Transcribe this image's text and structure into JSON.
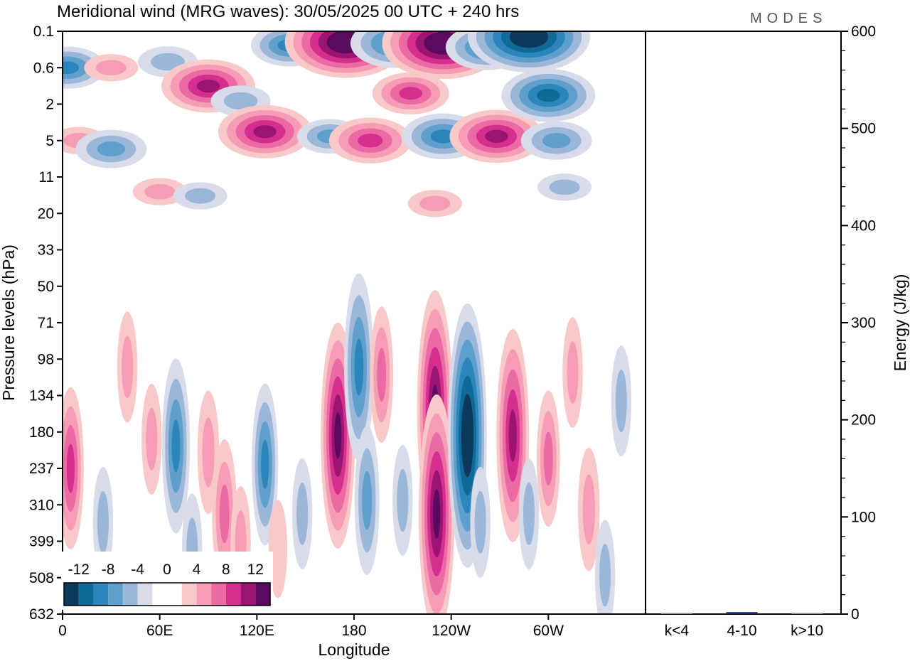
{
  "title": "Meridional wind (MRG waves):  30/05/2025  00 UTC  + 240 hrs",
  "logo": "MODES",
  "chart_data": [
    {
      "type": "heatmap",
      "title": "Meridional wind (MRG waves):  30/05/2025  00 UTC  + 240 hrs",
      "xlabel": "Longitude",
      "ylabel": "Pressure levels (hPa)",
      "x_ticks": [
        "0",
        "60E",
        "120E",
        "180",
        "120W",
        "60W"
      ],
      "y_ticks": [
        "0.1",
        "0.6",
        "2",
        "5",
        "11",
        "20",
        "33",
        "50",
        "71",
        "98",
        "134",
        "180",
        "237",
        "310",
        "399",
        "508",
        "632"
      ],
      "colorbar": {
        "labels": [
          "-12",
          "-8",
          "-4",
          "0",
          "4",
          "8",
          "12"
        ],
        "colors": [
          "#0d3a5c",
          "#106a98",
          "#2d86bb",
          "#5e9fcb",
          "#9ab6d8",
          "#d8dbe9",
          "#ffffff",
          "#ffffff",
          "#f9c9c9",
          "#f69cb5",
          "#ec6aa4",
          "#d42e8f",
          "#9c1472",
          "#5a0a5f"
        ]
      },
      "blobs_lower": [
        {
          "lon": 5,
          "p": 237,
          "v": 6
        },
        {
          "lon": 25,
          "p": 350,
          "v": -2
        },
        {
          "lon": 40,
          "p": 105,
          "v": 2
        },
        {
          "lon": 55,
          "p": 190,
          "v": 2
        },
        {
          "lon": 70,
          "p": 200,
          "v": -7
        },
        {
          "lon": 90,
          "p": 210,
          "v": 3
        },
        {
          "lon": 80,
          "p": 420,
          "v": -2
        },
        {
          "lon": 100,
          "p": 330,
          "v": 5
        },
        {
          "lon": 110,
          "p": 400,
          "v": 2
        },
        {
          "lon": 125,
          "p": 230,
          "v": -6
        },
        {
          "lon": 133,
          "p": 420,
          "v": 1
        },
        {
          "lon": 148,
          "p": 330,
          "v": -2
        },
        {
          "lon": 170,
          "p": 185,
          "v": 11
        },
        {
          "lon": 183,
          "p": 105,
          "v": -8
        },
        {
          "lon": 188,
          "p": 300,
          "v": -5
        },
        {
          "lon": 197,
          "p": 112,
          "v": 4
        },
        {
          "lon": 210,
          "p": 300,
          "v": -2
        },
        {
          "lon": 230,
          "p": 150,
          "v": 12
        },
        {
          "lon": 231,
          "p": 330,
          "v": 12
        },
        {
          "lon": 250,
          "p": 185,
          "v": -14
        },
        {
          "lon": 258,
          "p": 350,
          "v": -2
        },
        {
          "lon": 278,
          "p": 185,
          "v": 10
        },
        {
          "lon": 288,
          "p": 330,
          "v": -2
        },
        {
          "lon": 300,
          "p": 220,
          "v": 4
        },
        {
          "lon": 325,
          "p": 320,
          "v": 3
        },
        {
          "lon": 315,
          "p": 110,
          "v": 2
        },
        {
          "lon": 345,
          "p": 140,
          "v": -2
        },
        {
          "lon": 335,
          "p": 500,
          "v": -2
        }
      ],
      "blobs_upper": [
        {
          "lon": 3,
          "p": 0.6,
          "v": -6
        },
        {
          "lon": 30,
          "p": 0.6,
          "v": 2
        },
        {
          "lon": 10,
          "p": 5,
          "v": 2
        },
        {
          "lon": 30,
          "p": 6,
          "v": -5
        },
        {
          "lon": 65,
          "p": 0.45,
          "v": -3
        },
        {
          "lon": 90,
          "p": 1.1,
          "v": 9
        },
        {
          "lon": 60,
          "p": 14,
          "v": 2
        },
        {
          "lon": 85,
          "p": 15,
          "v": -2
        },
        {
          "lon": 110,
          "p": 1.8,
          "v": -3
        },
        {
          "lon": 125,
          "p": 4,
          "v": 9
        },
        {
          "lon": 140,
          "p": 0.2,
          "v": -6
        },
        {
          "lon": 175,
          "p": 0.17,
          "v": 14
        },
        {
          "lon": 165,
          "p": 4.5,
          "v": -4
        },
        {
          "lon": 190,
          "p": 5,
          "v": 7
        },
        {
          "lon": 205,
          "p": 0.18,
          "v": -8
        },
        {
          "lon": 215,
          "p": 1.4,
          "v": 6
        },
        {
          "lon": 235,
          "p": 0.18,
          "v": 14
        },
        {
          "lon": 235,
          "p": 4.5,
          "v": -7
        },
        {
          "lon": 230,
          "p": 17,
          "v": 2
        },
        {
          "lon": 262,
          "p": 0.22,
          "v": -7
        },
        {
          "lon": 268,
          "p": 4.5,
          "v": 9
        },
        {
          "lon": 288,
          "p": 0.13,
          "v": -14
        },
        {
          "lon": 300,
          "p": 1.5,
          "v": -9
        },
        {
          "lon": 305,
          "p": 5,
          "v": -5
        },
        {
          "lon": 310,
          "p": 13,
          "v": -2
        }
      ]
    },
    {
      "type": "bar",
      "ylabel": "Energy (J/kg)",
      "categories": [
        "k<4",
        "4-10",
        "k>10"
      ],
      "values": [
        0,
        2,
        0
      ],
      "ylim": [
        0,
        600
      ],
      "y_ticks": [
        0,
        100,
        200,
        300,
        400,
        500,
        600
      ],
      "bar_color": "#1a237e"
    }
  ]
}
